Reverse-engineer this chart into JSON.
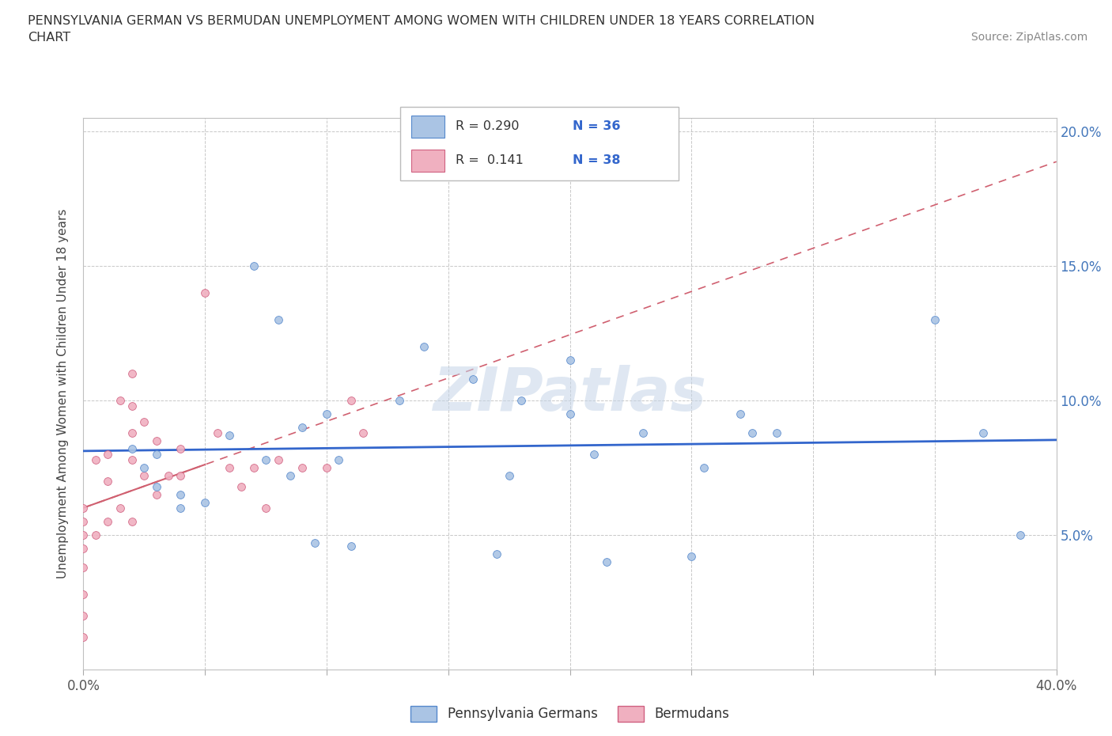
{
  "title_line1": "PENNSYLVANIA GERMAN VS BERMUDAN UNEMPLOYMENT AMONG WOMEN WITH CHILDREN UNDER 18 YEARS CORRELATION",
  "title_line2": "CHART",
  "source": "Source: ZipAtlas.com",
  "ylabel": "Unemployment Among Women with Children Under 18 years",
  "xlim": [
    0.0,
    0.4
  ],
  "ylim": [
    0.0,
    0.205
  ],
  "xticks": [
    0.0,
    0.05,
    0.1,
    0.15,
    0.2,
    0.25,
    0.3,
    0.35,
    0.4
  ],
  "yticks": [
    0.0,
    0.05,
    0.1,
    0.15,
    0.2
  ],
  "blue_color": "#aac4e4",
  "blue_edge": "#5588cc",
  "pink_color": "#f0b0c0",
  "pink_edge": "#d06080",
  "blue_line_color": "#3366cc",
  "pink_line_color": "#d06070",
  "watermark": "ZIPatlas",
  "legend_labels": [
    "Pennsylvania Germans",
    "Bermudans"
  ],
  "pg_x": [
    0.02,
    0.025,
    0.03,
    0.03,
    0.04,
    0.04,
    0.05,
    0.06,
    0.07,
    0.075,
    0.08,
    0.085,
    0.09,
    0.095,
    0.1,
    0.105,
    0.11,
    0.13,
    0.14,
    0.16,
    0.17,
    0.175,
    0.18,
    0.2,
    0.2,
    0.21,
    0.215,
    0.23,
    0.25,
    0.255,
    0.27,
    0.275,
    0.285,
    0.35,
    0.37,
    0.385
  ],
  "pg_y": [
    0.082,
    0.075,
    0.08,
    0.068,
    0.065,
    0.06,
    0.062,
    0.087,
    0.15,
    0.078,
    0.13,
    0.072,
    0.09,
    0.047,
    0.095,
    0.078,
    0.046,
    0.1,
    0.12,
    0.108,
    0.043,
    0.072,
    0.1,
    0.095,
    0.115,
    0.08,
    0.04,
    0.088,
    0.042,
    0.075,
    0.095,
    0.088,
    0.088,
    0.13,
    0.088,
    0.05
  ],
  "bm_x": [
    0.0,
    0.0,
    0.0,
    0.0,
    0.0,
    0.0,
    0.0,
    0.0,
    0.005,
    0.005,
    0.01,
    0.01,
    0.01,
    0.015,
    0.015,
    0.02,
    0.02,
    0.02,
    0.02,
    0.02,
    0.025,
    0.025,
    0.03,
    0.03,
    0.035,
    0.04,
    0.04,
    0.05,
    0.055,
    0.06,
    0.065,
    0.07,
    0.075,
    0.08,
    0.09,
    0.1,
    0.11,
    0.115
  ],
  "bm_y": [
    0.06,
    0.055,
    0.05,
    0.045,
    0.038,
    0.028,
    0.02,
    0.012,
    0.078,
    0.05,
    0.08,
    0.07,
    0.055,
    0.1,
    0.06,
    0.11,
    0.098,
    0.088,
    0.078,
    0.055,
    0.092,
    0.072,
    0.085,
    0.065,
    0.072,
    0.082,
    0.072,
    0.14,
    0.088,
    0.075,
    0.068,
    0.075,
    0.06,
    0.078,
    0.075,
    0.075,
    0.1,
    0.088
  ]
}
